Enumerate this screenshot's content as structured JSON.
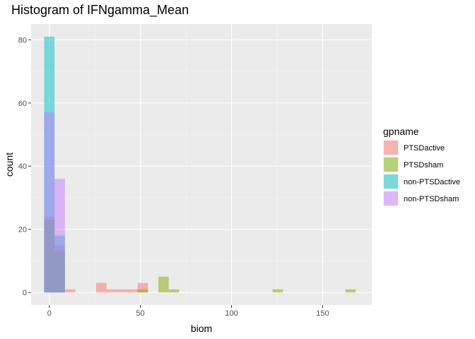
{
  "chart_data": {
    "type": "bar",
    "subtype": "histogram",
    "title": "Histogram of IFNgamma_Mean",
    "xlabel": "biom",
    "ylabel": "count",
    "xlim": [
      -10,
      177
    ],
    "ylim": [
      -4,
      85
    ],
    "x_ticks": [
      0,
      50,
      100,
      150
    ],
    "y_ticks": [
      0,
      20,
      40,
      60,
      80
    ],
    "grid": true,
    "bin_width": 5.7,
    "bar_opacity": 0.5,
    "legend": {
      "title": "gpname",
      "position": "right"
    },
    "series": [
      {
        "name": "PTSDactive",
        "color": "#F8766D",
        "bins": [
          {
            "x": 0,
            "count": 24
          },
          {
            "x": 5.7,
            "count": 15
          },
          {
            "x": 11.4,
            "count": 1
          },
          {
            "x": 28.5,
            "count": 3
          },
          {
            "x": 34.2,
            "count": 1
          },
          {
            "x": 39.9,
            "count": 1
          },
          {
            "x": 45.6,
            "count": 1
          },
          {
            "x": 51.3,
            "count": 3
          }
        ]
      },
      {
        "name": "PTSDsham",
        "color": "#7CAE00",
        "bins": [
          {
            "x": 0,
            "count": 23
          },
          {
            "x": 5.7,
            "count": 13
          },
          {
            "x": 51.3,
            "count": 1
          },
          {
            "x": 62.7,
            "count": 5
          },
          {
            "x": 68.4,
            "count": 1
          },
          {
            "x": 125.4,
            "count": 1
          },
          {
            "x": 165.3,
            "count": 1
          }
        ]
      },
      {
        "name": "non-PTSDactive",
        "color": "#00BFC4",
        "bins": [
          {
            "x": 0,
            "count": 81
          },
          {
            "x": 5.7,
            "count": 18
          }
        ]
      },
      {
        "name": "non-PTSDsham",
        "color": "#C77CFF",
        "bins": [
          {
            "x": 0,
            "count": 57
          },
          {
            "x": 5.7,
            "count": 36
          }
        ]
      }
    ]
  }
}
